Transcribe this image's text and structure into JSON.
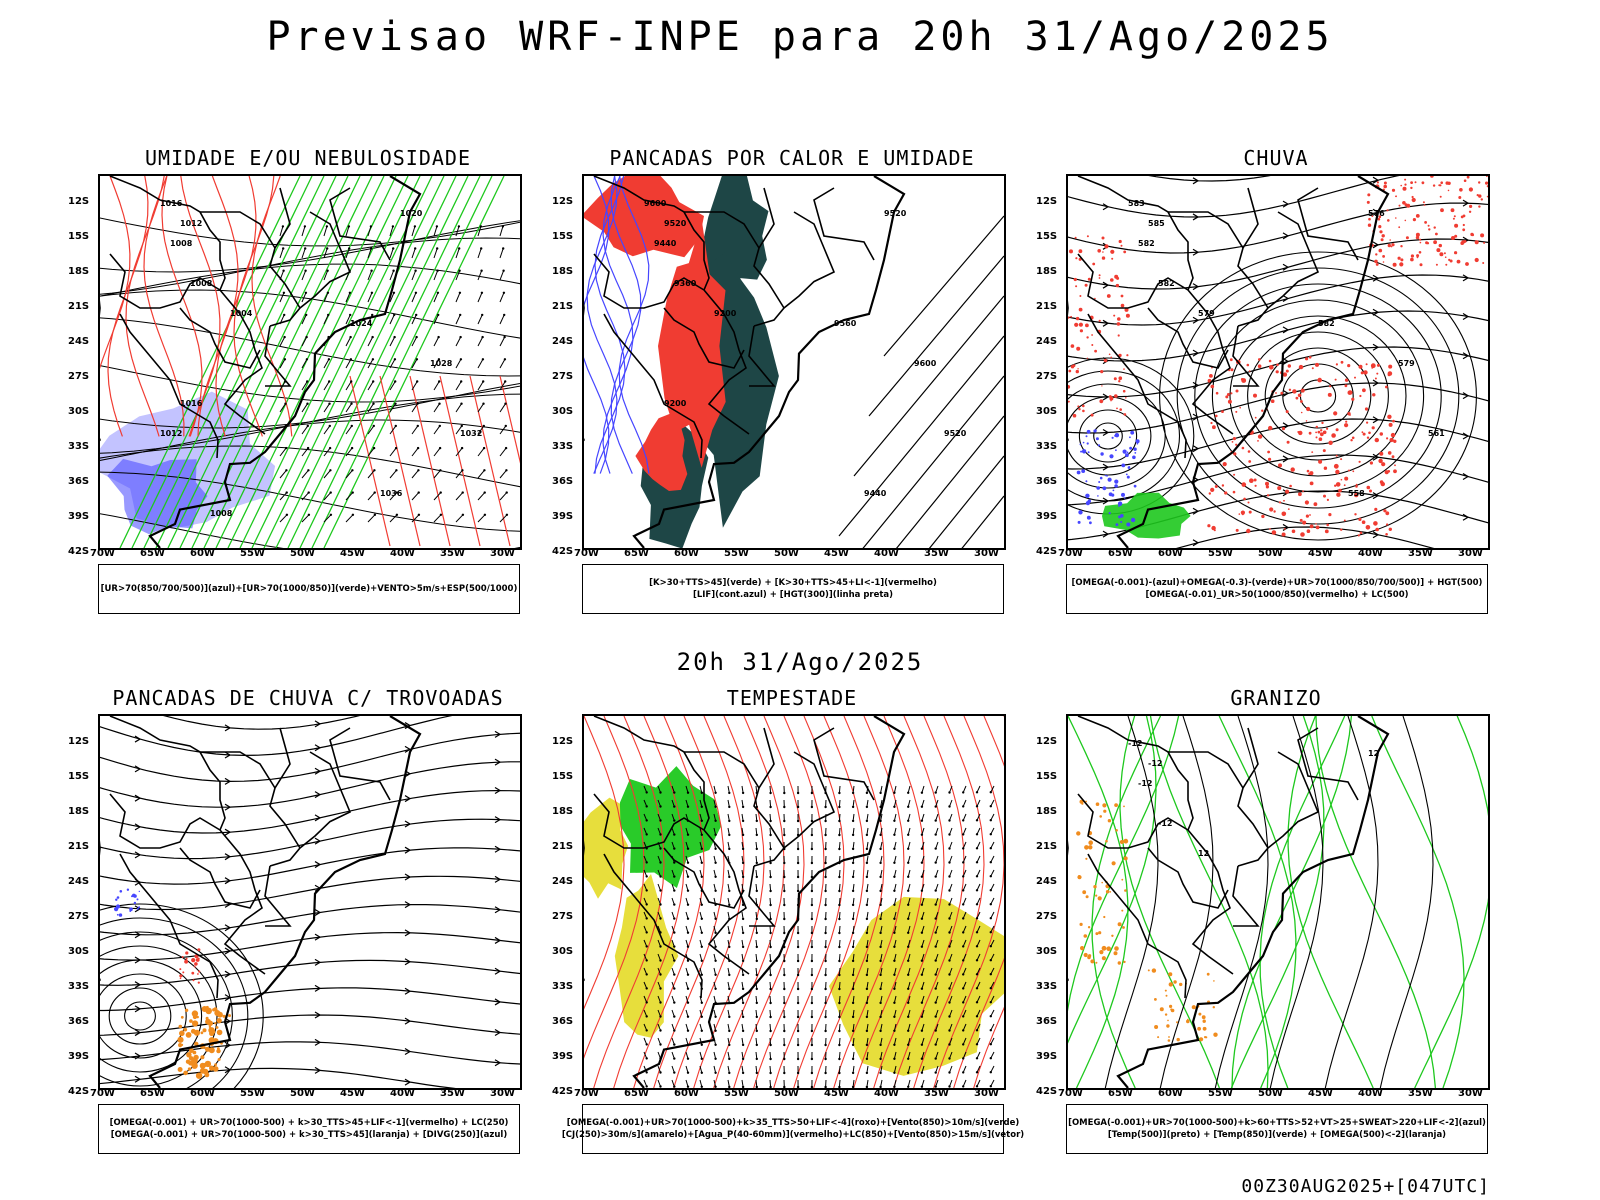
{
  "header": {
    "title": "Previsao WRF-INPE  para 20h 31/Ago/2025"
  },
  "mid_title": "20h 31/Ago/2025",
  "footer": "00Z30AUG2025+[047UTC]",
  "axes": {
    "lat_labels": [
      "12S",
      "15S",
      "18S",
      "21S",
      "24S",
      "27S",
      "30S",
      "33S",
      "36S",
      "39S",
      "42S"
    ],
    "lon_labels": [
      "70W",
      "65W",
      "60W",
      "55W",
      "50W",
      "45W",
      "40W",
      "35W",
      "30W"
    ]
  },
  "colors": {
    "red": "#f03c32",
    "green": "#1ec81e",
    "blue": "#4646ff",
    "lightblue": "#b4b4ff",
    "darkteal": "#1e4646",
    "orange": "#f08c1e",
    "yellow": "#e6dc32"
  },
  "panels": [
    {
      "title": "UMIDADE E/OU NEBULOSIDADE",
      "legend": [
        "[UR>70(850/700/500)](azul)+[UR>70(1000/850)](verde)+VENTO>5m/s+ESP(500/1000)"
      ],
      "contour_labels": [
        "1016",
        "1012",
        "1008",
        "1008",
        "1004",
        "1020",
        "1024",
        "1028",
        "1032",
        "1036",
        "1016",
        "1012",
        "1008"
      ]
    },
    {
      "title": "PANCADAS POR CALOR E UMIDADE",
      "legend": [
        "[K>30+TTS>45](verde) + [K>30+TTS>45+LI<-1](vermelho)",
        "[LIF](cont.azul) + [HGT(300)](linha preta)"
      ],
      "contour_labels": [
        "9600",
        "9520",
        "9440",
        "9360",
        "9200",
        "9520",
        "9560",
        "9600",
        "9520",
        "9440",
        "9200"
      ]
    },
    {
      "title": "CHUVA",
      "legend": [
        "[OMEGA(-0.001)-(azul)+OMEGA(-0.3)-(verde)+UR>70(1000/850/700/500)] + HGT(500)",
        "[OMEGA(-0.01)_UR>50(1000/850)(vermelho) + LC(500)"
      ],
      "contour_labels": [
        "583",
        "585",
        "582",
        "582",
        "579",
        "576",
        "582",
        "579",
        "561",
        "558"
      ]
    },
    {
      "title": "PANCADAS DE CHUVA C/ TROVOADAS",
      "legend": [
        "[OMEGA(-0.001) + UR>70(1000-500) + k>30_TTS>45+LIF<-1](vermelho) + LC(250)",
        "[OMEGA(-0.001) + UR>70(1000-500) + k>30_TTS>45](laranja) + [DIVG(250)](azul)"
      ],
      "contour_labels": []
    },
    {
      "title": "TEMPESTADE",
      "legend": [
        "[OMEGA(-0.001)+UR>70(1000-500)+k>35_TTS>50+LIF<-4](roxo)+[Vento(850)>10m/s](verde)",
        "[CJ(250)>30m/s](amarelo)+[Agua_P(40-60mm)](vermelho)+LC(850)+[Vento(850)>15m/s](vetor)"
      ],
      "contour_labels": []
    },
    {
      "title": "GRANIZO",
      "legend": [
        "[OMEGA(-0.001)+UR>70(1000-500)+k>60+TTS>52+VT>25+SWEAT>220+LIF<-2](azul)",
        "[Temp(500)](preto) + [Temp(850)](verde) + [OMEGA(500)<-2](laranja)"
      ],
      "contour_labels": [
        "-12",
        "-12",
        "-12",
        "-12",
        "12",
        "12"
      ]
    }
  ]
}
